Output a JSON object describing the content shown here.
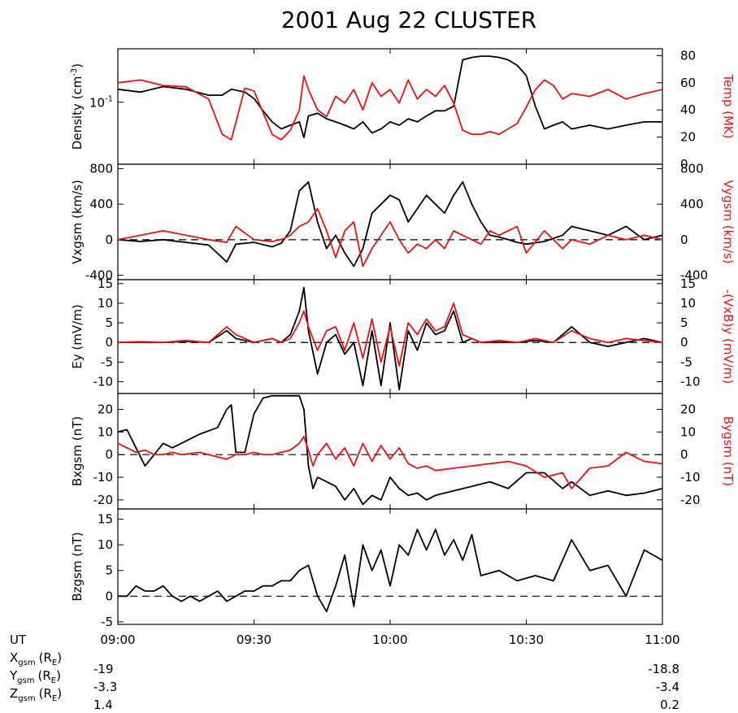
{
  "title": "2001 Aug 22 CLUSTER",
  "colors": {
    "primary": "#000000",
    "secondary": "#ee1111"
  },
  "xaxis": {
    "ticks": [
      "09:00",
      "09:30",
      "10:00",
      "10:30",
      "11:00"
    ],
    "tick_values": [
      0,
      30,
      60,
      90,
      120
    ],
    "range": [
      0,
      120
    ],
    "ut_label": "UT"
  },
  "orbit": {
    "rows": [
      {
        "coord": "X",
        "sub": "gsm",
        "unit_prefix": "(R",
        "unit_sub": "E",
        "unit_suffix": ")",
        "start": "-19",
        "end": "-18.8"
      },
      {
        "coord": "Y",
        "sub": "gsm",
        "unit_prefix": "(R",
        "unit_sub": "E",
        "unit_suffix": ")",
        "start": "-3.3",
        "end": "-3.4"
      },
      {
        "coord": "Z",
        "sub": "gsm",
        "unit_prefix": "(R",
        "unit_sub": "E",
        "unit_suffix": ")",
        "start": "1.4",
        "end": "0.2"
      }
    ]
  },
  "panels": [
    {
      "id": "density",
      "left_label": "Density (cm",
      "left_label_sup": "-3",
      "left_label_end": ")",
      "left_ticks": [
        "10",
        "-1"
      ],
      "right_label": "Temp (MK)",
      "right_ticks": [
        "0",
        "20",
        "40",
        "60",
        "80"
      ]
    },
    {
      "id": "velocity",
      "left_label": "Vxgsm (km/s)",
      "left_ticks": [
        "-400",
        "0",
        "400",
        "800"
      ],
      "right_label": "Vygsm (km/s)",
      "right_ticks": [
        "-400",
        "0",
        "400",
        "800"
      ]
    },
    {
      "id": "efield",
      "left_label": "Ey (mV/m)",
      "left_ticks": [
        "-10",
        "-5",
        "0",
        "5",
        "10",
        "15"
      ],
      "right_label": "-(VxB)y (mV/m)",
      "right_ticks": [
        "-10",
        "-5",
        "0",
        "5",
        "10",
        "15"
      ]
    },
    {
      "id": "bx",
      "left_label": "Bxgsm (nT)",
      "left_ticks": [
        "-20",
        "-10",
        "0",
        "10",
        "20"
      ],
      "right_label": "Bygsm (nT)",
      "right_ticks": [
        "-20",
        "-10",
        "0",
        "10",
        "20"
      ]
    },
    {
      "id": "bz",
      "left_label": "Bzgsm (nT)",
      "left_ticks": [
        "-5",
        "0",
        "5",
        "10",
        "15"
      ]
    }
  ],
  "chart_data": [
    {
      "type": "line",
      "panel": "density",
      "x": [
        0,
        5,
        10,
        15,
        20,
        23,
        25,
        28,
        30,
        32,
        34,
        36,
        38,
        40,
        41,
        42,
        44,
        46,
        48,
        50,
        52,
        54,
        56,
        58,
        60,
        62,
        64,
        66,
        68,
        70,
        72,
        74,
        76,
        78,
        80,
        82,
        84,
        86,
        88,
        90,
        92,
        94,
        96,
        98,
        100,
        104,
        108,
        112,
        116,
        120
      ],
      "ylabel": "Density (cm-3)",
      "yscale": "log",
      "ylim": [
        0.02,
        0.4
      ],
      "series": [
        {
          "values": [
            0.14,
            0.13,
            0.15,
            0.14,
            0.12,
            0.12,
            0.14,
            0.13,
            0.11,
            0.08,
            0.06,
            0.05,
            0.055,
            0.06,
            0.04,
            0.07,
            0.075,
            0.065,
            0.06,
            0.055,
            0.05,
            0.06,
            0.045,
            0.05,
            0.06,
            0.055,
            0.065,
            0.06,
            0.07,
            0.08,
            0.08,
            0.09,
            0.3,
            0.32,
            0.33,
            0.33,
            0.32,
            0.3,
            0.26,
            0.2,
            0.09,
            0.05,
            0.055,
            0.06,
            0.05,
            0.055,
            0.05,
            0.055,
            0.06,
            0.06
          ]
        }
      ]
    },
    {
      "type": "line",
      "panel": "density",
      "x": [
        0,
        5,
        10,
        15,
        20,
        23,
        25,
        28,
        30,
        32,
        34,
        36,
        38,
        40,
        41,
        42,
        44,
        46,
        48,
        50,
        52,
        54,
        56,
        58,
        60,
        62,
        64,
        66,
        68,
        70,
        72,
        74,
        76,
        78,
        80,
        82,
        84,
        86,
        88,
        90,
        92,
        94,
        96,
        98,
        100,
        104,
        108,
        112,
        116,
        120
      ],
      "ylabel": "Temp (MK)",
      "ylim": [
        0,
        85
      ],
      "series": [
        {
          "values": [
            60,
            62,
            58,
            57,
            48,
            22,
            18,
            56,
            54,
            38,
            22,
            18,
            25,
            40,
            65,
            55,
            40,
            35,
            50,
            45,
            55,
            40,
            60,
            50,
            55,
            45,
            62,
            48,
            55,
            50,
            58,
            45,
            25,
            22,
            22,
            24,
            22,
            26,
            30,
            42,
            55,
            62,
            58,
            48,
            52,
            50,
            55,
            48,
            52,
            55
          ]
        }
      ]
    },
    {
      "type": "line",
      "panel": "velocity",
      "x": [
        0,
        5,
        10,
        15,
        20,
        24,
        26,
        30,
        34,
        36,
        38,
        40,
        42,
        44,
        46,
        48,
        50,
        52,
        54,
        56,
        58,
        60,
        62,
        64,
        66,
        68,
        70,
        72,
        74,
        76,
        78,
        80,
        82,
        84,
        86,
        88,
        90,
        94,
        98,
        100,
        104,
        108,
        112,
        116,
        120
      ],
      "ylabel": "Vxgsm (km/s)",
      "ylim": [
        -450,
        850
      ],
      "series": [
        {
          "values": [
            0,
            -20,
            0,
            -30,
            -60,
            -250,
            -50,
            -30,
            -80,
            -40,
            100,
            550,
            650,
            200,
            -100,
            50,
            -150,
            -300,
            -100,
            300,
            400,
            500,
            450,
            200,
            350,
            500,
            400,
            300,
            500,
            650,
            400,
            200,
            50,
            30,
            0,
            -30,
            -50,
            -20,
            50,
            150,
            100,
            50,
            150,
            0,
            50
          ]
        }
      ]
    },
    {
      "type": "line",
      "panel": "velocity",
      "x": [
        0,
        5,
        10,
        15,
        20,
        24,
        26,
        30,
        34,
        36,
        38,
        40,
        42,
        44,
        46,
        48,
        50,
        52,
        54,
        56,
        58,
        60,
        62,
        64,
        66,
        68,
        70,
        72,
        74,
        76,
        78,
        80,
        82,
        84,
        86,
        88,
        90,
        94,
        98,
        100,
        104,
        108,
        112,
        116,
        120
      ],
      "ylabel": "Vygsm (km/s)",
      "ylim": [
        -450,
        850
      ],
      "series": [
        {
          "values": [
            0,
            50,
            100,
            50,
            0,
            -30,
            150,
            0,
            -20,
            0,
            50,
            150,
            200,
            350,
            100,
            -200,
            100,
            200,
            -300,
            -100,
            50,
            200,
            0,
            -150,
            -50,
            -100,
            0,
            -100,
            100,
            50,
            0,
            -50,
            100,
            50,
            100,
            150,
            -150,
            100,
            -100,
            0,
            -50,
            50,
            0,
            50,
            0
          ]
        }
      ]
    },
    {
      "type": "line",
      "panel": "efield",
      "x": [
        0,
        5,
        10,
        15,
        20,
        24,
        26,
        30,
        34,
        36,
        38,
        40,
        41,
        42,
        44,
        46,
        48,
        50,
        52,
        54,
        56,
        58,
        60,
        62,
        64,
        66,
        68,
        70,
        72,
        74,
        76,
        78,
        80,
        84,
        88,
        92,
        96,
        100,
        104,
        108,
        112,
        116,
        120
      ],
      "ylabel": "Ey (mV/m)",
      "ylim": [
        -13,
        16
      ],
      "series": [
        {
          "values": [
            0,
            0,
            0,
            0.3,
            0,
            3,
            1,
            0,
            1,
            0,
            2,
            8,
            14,
            3,
            -8,
            0,
            2,
            -3,
            0,
            -11,
            3,
            -11,
            5,
            -12,
            3,
            -2,
            5,
            2,
            3,
            8,
            0,
            1,
            0,
            0,
            0,
            0.5,
            0,
            4,
            0,
            -1,
            0,
            1,
            0
          ]
        }
      ]
    },
    {
      "type": "line",
      "panel": "efield",
      "x": [
        0,
        5,
        10,
        15,
        20,
        24,
        26,
        30,
        34,
        36,
        38,
        40,
        41,
        42,
        44,
        46,
        48,
        50,
        52,
        54,
        56,
        58,
        60,
        62,
        64,
        66,
        68,
        70,
        72,
        74,
        76,
        78,
        80,
        84,
        88,
        92,
        96,
        100,
        104,
        108,
        112,
        116,
        120
      ],
      "ylabel": "-(VxB)y (mV/m)",
      "ylim": [
        -13,
        16
      ],
      "series": [
        {
          "values": [
            0,
            0.2,
            0,
            0.5,
            0,
            4,
            2,
            0,
            1,
            0,
            1,
            5,
            8,
            4,
            -2,
            3,
            4,
            -2,
            5,
            -4,
            6,
            -5,
            4,
            -6,
            5,
            2,
            6,
            3,
            4,
            10,
            2,
            1,
            0,
            0.5,
            0,
            1,
            0,
            3,
            1,
            0,
            1,
            0.5,
            0
          ]
        }
      ]
    },
    {
      "type": "line",
      "panel": "bx",
      "x": [
        0,
        2,
        4,
        6,
        8,
        10,
        12,
        14,
        18,
        22,
        24,
        25,
        26,
        28,
        30,
        32,
        34,
        36,
        38,
        40,
        41,
        42,
        43,
        44,
        46,
        48,
        50,
        52,
        54,
        56,
        58,
        60,
        62,
        64,
        66,
        68,
        70,
        74,
        78,
        82,
        86,
        90,
        94,
        98,
        100,
        104,
        108,
        112,
        116,
        120
      ],
      "ylabel": "Bxgsm (nT)",
      "ylim": [
        -24,
        27
      ],
      "series": [
        {
          "values": [
            10,
            11,
            3,
            -5,
            0,
            5,
            3,
            5,
            9,
            12,
            20,
            22,
            1,
            1,
            18,
            25,
            26,
            26,
            26,
            26,
            20,
            -5,
            -15,
            -10,
            -12,
            -14,
            -20,
            -15,
            -22,
            -18,
            -20,
            -10,
            -15,
            -18,
            -17,
            -20,
            -18,
            -16,
            -14,
            -12,
            -15,
            -8,
            -8,
            -15,
            -12,
            -18,
            -16,
            -18,
            -17,
            -15
          ]
        }
      ]
    },
    {
      "type": "line",
      "panel": "bx",
      "x": [
        0,
        2,
        4,
        6,
        8,
        10,
        12,
        14,
        18,
        22,
        24,
        25,
        26,
        28,
        30,
        32,
        34,
        36,
        38,
        40,
        41,
        42,
        43,
        44,
        46,
        48,
        50,
        52,
        54,
        56,
        58,
        60,
        62,
        64,
        66,
        68,
        70,
        74,
        78,
        82,
        86,
        90,
        94,
        98,
        100,
        104,
        108,
        112,
        116,
        120
      ],
      "ylabel": "Bygsm (nT)",
      "ylim": [
        -24,
        27
      ],
      "series": [
        {
          "values": [
            5,
            3,
            1,
            2,
            0,
            0,
            1,
            0,
            1,
            -1,
            -2,
            -1,
            0,
            0,
            1,
            0,
            0,
            1,
            2,
            5,
            8,
            2,
            -5,
            0,
            5,
            -2,
            3,
            -5,
            5,
            -3,
            4,
            -2,
            3,
            -4,
            -6,
            -5,
            -7,
            -6,
            -5,
            -4,
            -3,
            -5,
            -10,
            -8,
            -15,
            -6,
            -5,
            1,
            -3,
            -4
          ]
        }
      ]
    },
    {
      "type": "line",
      "panel": "bz",
      "x": [
        0,
        2,
        4,
        6,
        8,
        10,
        12,
        14,
        16,
        18,
        20,
        22,
        24,
        26,
        28,
        30,
        32,
        34,
        36,
        38,
        40,
        42,
        44,
        46,
        48,
        50,
        52,
        54,
        56,
        58,
        60,
        62,
        64,
        66,
        68,
        70,
        72,
        74,
        76,
        78,
        80,
        84,
        88,
        92,
        96,
        100,
        104,
        108,
        112,
        116,
        120
      ],
      "ylabel": "Bzgsm (nT)",
      "ylim": [
        -5.5,
        17
      ],
      "series": [
        {
          "values": [
            0,
            0,
            2,
            1,
            1,
            2,
            0,
            -1,
            0,
            -1,
            0,
            1,
            -1,
            0,
            1,
            1,
            2,
            2,
            3,
            3,
            5,
            6,
            0,
            -3,
            2,
            8,
            -2,
            10,
            5,
            9,
            2,
            10,
            8,
            13,
            9,
            13,
            8,
            11,
            7,
            12,
            4,
            5,
            3,
            4,
            3,
            11,
            5,
            6,
            0,
            9,
            7
          ]
        }
      ]
    }
  ]
}
